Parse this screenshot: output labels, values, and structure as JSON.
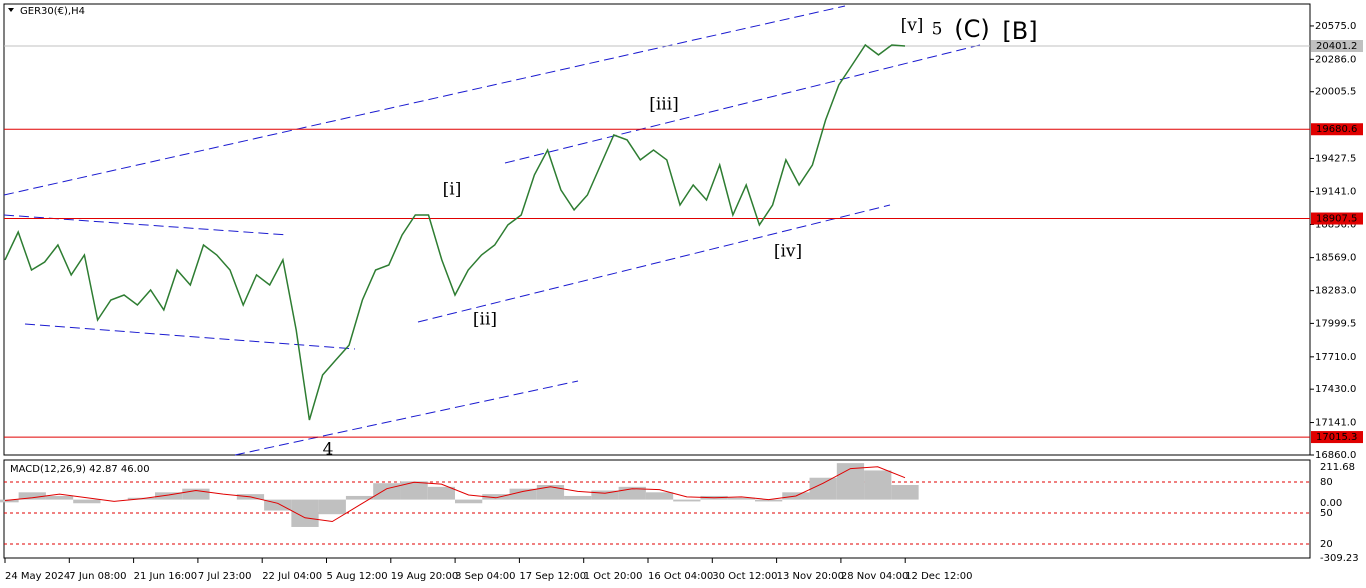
{
  "chart_data": [
    {
      "type": "line",
      "title": "GER30(€),H4",
      "color": "#2e7d32",
      "values": [
        18549,
        18791,
        18462,
        18531,
        18678,
        18419,
        18592,
        18029,
        18202,
        18245,
        18159,
        18289,
        18116,
        18462,
        18332,
        18678,
        18592,
        18462,
        18159,
        18419,
        18332,
        18549,
        17942,
        17163,
        17553,
        17683,
        17812,
        18202,
        18462,
        18505,
        18765,
        18938,
        18938,
        18549,
        18245,
        18462,
        18592,
        18678,
        18852,
        18938,
        19285,
        19501,
        19155,
        18982,
        19111,
        19371,
        19631,
        19588,
        19415,
        19501,
        19415,
        19025,
        19198,
        19068,
        19371,
        18938,
        19198,
        18852,
        19025,
        19415,
        19198,
        19371,
        19761,
        20064,
        20237,
        20410,
        20324,
        20410,
        20401
      ],
      "ylim": [
        16860,
        20765
      ],
      "yticks": [
        {
          "value": 20575,
          "label": "20575.0"
        },
        {
          "value": 20286,
          "label": "20286.0"
        },
        20005.5,
        19427.5,
        {
          "value": 19141,
          "label": "19141.0"
        },
        {
          "value": 18856,
          "label": "18856.0"
        },
        {
          "value": 18569,
          "label": "18569.0"
        },
        {
          "value": 18283,
          "label": "18283.0"
        },
        17999.5,
        {
          "value": 17710,
          "label": "17710.0"
        },
        {
          "value": 17430,
          "label": "17430.0"
        },
        {
          "value": 17141,
          "label": "17141.0"
        },
        {
          "value": 16860,
          "label": "16860.0"
        }
      ],
      "levels": [
        19680.6,
        18907.5,
        17015.3
      ],
      "level_color": "#e00000",
      "current_price": 20401.2,
      "annotations": [
        {
          "text": "[v]",
          "color": "#2e8b2e"
        },
        {
          "text": "5",
          "color": "#1a1ad0"
        },
        {
          "text": "(C)",
          "color": "#e00000"
        },
        {
          "text": "[B]",
          "color": "#000000"
        },
        {
          "text": "[iii]",
          "color": "#2e8b2e"
        },
        {
          "text": "[i]",
          "color": "#2e8b2e"
        },
        {
          "text": "[iv]",
          "color": "#2e8b2e"
        },
        {
          "text": "[ii]",
          "color": "#2e8b2e"
        },
        {
          "text": "4",
          "color": "#1a1ad0"
        }
      ],
      "x_labels": [
        "24 May 2024",
        "7 Jun 08:00",
        "21 Jun 16:00",
        "7 Jul 23:00",
        "22 Jul 04:00",
        "5 Aug 12:00",
        "19 Aug 20:00",
        "3 Sep 04:00",
        "17 Sep 12:00",
        "1 Oct 20:00",
        "16 Oct 04:00",
        "30 Oct 12:00",
        "13 Nov 20:00",
        "28 Nov 04:00",
        "12 Dec 12:00"
      ]
    },
    {
      "type": "macd",
      "title": "MACD(12,26,9) 42.87 46.00",
      "histogram": [
        -15,
        40,
        20,
        -20,
        0,
        10,
        40,
        60,
        0,
        30,
        -60,
        -150,
        -80,
        20,
        90,
        100,
        70,
        -20,
        30,
        60,
        80,
        20,
        50,
        70,
        40,
        -10,
        20,
        10,
        -10,
        40,
        120,
        200,
        160,
        80
      ],
      "histogram_color": "#c0c0c0",
      "signal": [
        -5,
        10,
        30,
        10,
        -10,
        5,
        25,
        50,
        30,
        15,
        -20,
        -100,
        -120,
        -30,
        60,
        95,
        85,
        25,
        10,
        45,
        70,
        45,
        35,
        60,
        55,
        15,
        10,
        15,
        0,
        20,
        90,
        170,
        180,
        120
      ],
      "signal_color": "#e00000",
      "ylim": [
        -309.23,
        211.68
      ],
      "axis_labels": [
        "211.68",
        "80",
        "0.00",
        "50",
        "20",
        "-309.23"
      ]
    }
  ]
}
